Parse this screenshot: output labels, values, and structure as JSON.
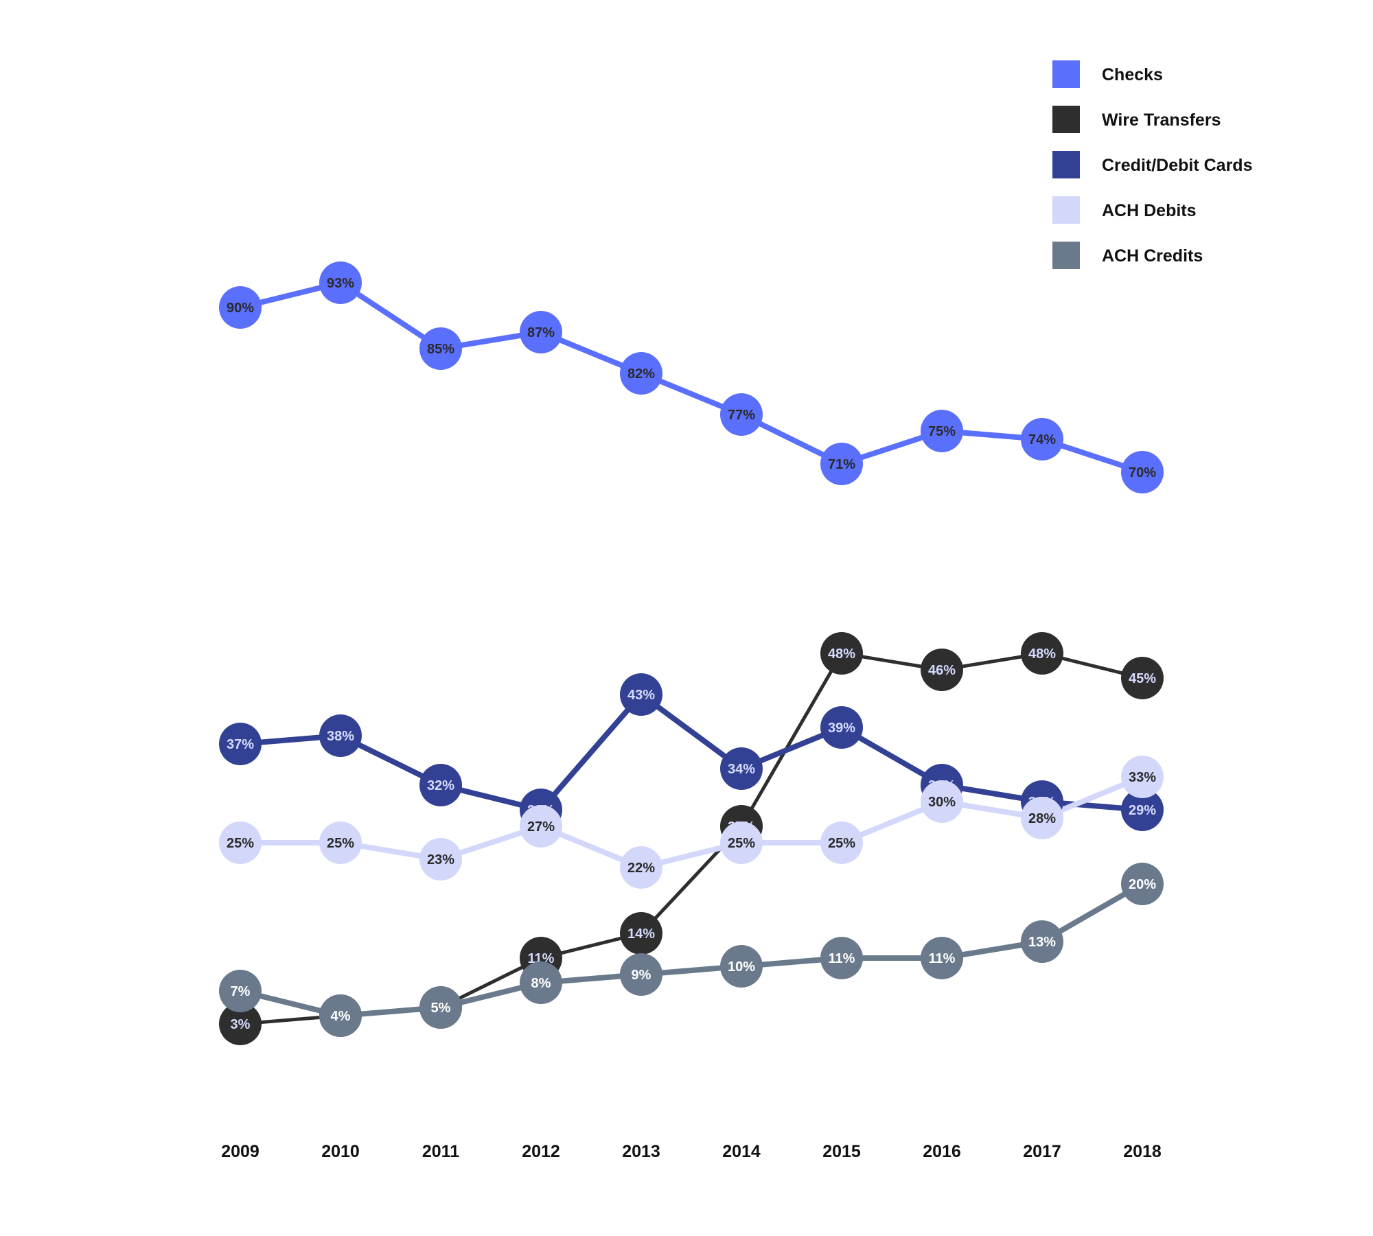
{
  "chart_data": {
    "type": "line",
    "title": "",
    "xlabel": "",
    "ylabel": "",
    "ylim": [
      0,
      100
    ],
    "grid": false,
    "legend_placement": "top-right",
    "x": [
      "2009",
      "2010",
      "2011",
      "2012",
      "2013",
      "2014",
      "2015",
      "2016",
      "2017",
      "2018"
    ],
    "series": [
      {
        "name": "Checks",
        "color": "#5a6ffc",
        "label_color": "#2a2a2a",
        "values": [
          90,
          93,
          85,
          87,
          82,
          77,
          71,
          75,
          74,
          70
        ],
        "labels": [
          "90%",
          "93%",
          "85%",
          "87%",
          "82%",
          "77%",
          "71%",
          "75%",
          "74%",
          "70%"
        ]
      },
      {
        "name": "Wire Transfers",
        "color": "#2e2e2e",
        "label_color": "#d6dbff",
        "values": [
          3,
          4,
          5,
          11,
          14,
          27,
          48,
          46,
          48,
          45
        ],
        "labels": [
          "3%",
          "4%",
          "5%",
          "11%",
          "14%",
          "27%",
          "48%",
          "46%",
          "48%",
          "45%"
        ]
      },
      {
        "name": "Credit/Debit Cards",
        "color": "#334195",
        "label_color": "#d6dbff",
        "values": [
          37,
          38,
          32,
          29,
          43,
          34,
          39,
          32,
          30,
          29
        ],
        "labels": [
          "37%",
          "38%",
          "32%",
          "29%",
          "43%",
          "34%",
          "39%",
          "32%",
          "30%",
          "29%"
        ]
      },
      {
        "name": "ACH Debits",
        "color": "#d3d8fb",
        "label_color": "#2a2a2a",
        "values": [
          25,
          25,
          23,
          27,
          22,
          25,
          25,
          30,
          28,
          33
        ],
        "labels": [
          "25%",
          "25%",
          "23%",
          "27%",
          "22%",
          "25%",
          "25%",
          "30%",
          "28%",
          "33%"
        ]
      },
      {
        "name": "ACH Credits",
        "color": "#6a7a8c",
        "label_color": "#ffffff",
        "values": [
          7,
          4,
          5,
          8,
          9,
          10,
          11,
          11,
          13,
          20
        ],
        "labels": [
          "7%",
          "4%",
          "5%",
          "8%",
          "9%",
          "10%",
          "11%",
          "11%",
          "13%",
          "20%"
        ]
      }
    ]
  }
}
